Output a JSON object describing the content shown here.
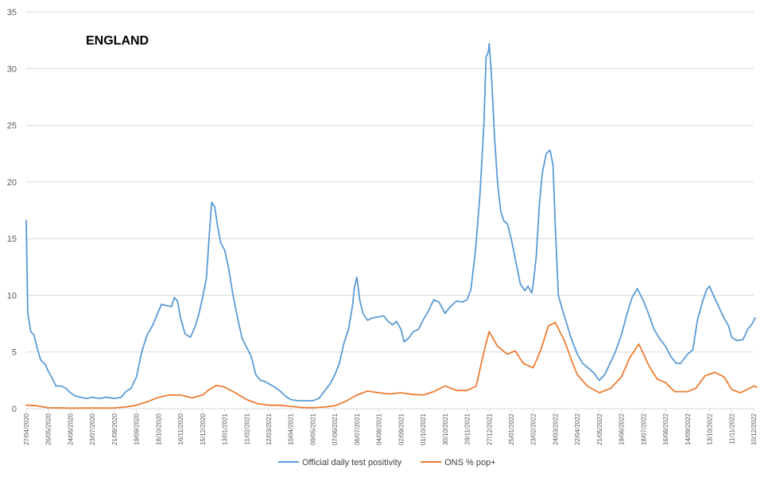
{
  "chart_data": {
    "type": "line",
    "title": "",
    "annotation": "ENGLAND",
    "xlabel": "",
    "ylabel": "",
    "ylim": [
      0,
      35
    ],
    "y_ticks": [
      "0",
      "5",
      "10",
      "15",
      "20",
      "25",
      "30",
      "35"
    ],
    "x_tick_labels": [
      "27/04/2020",
      "26/05/2020",
      "24/06/2020",
      "23/07/2020",
      "21/08/2020",
      "19/09/2020",
      "18/10/2020",
      "16/11/2020",
      "15/12/2020",
      "13/01/2021",
      "11/02/2021",
      "12/03/2021",
      "10/04/2021",
      "09/05/2021",
      "07/06/2021",
      "06/07/2021",
      "04/08/2021",
      "02/09/2021",
      "01/10/2021",
      "30/10/2021",
      "28/11/2021",
      "27/12/2021",
      "25/01/2022",
      "23/02/2022",
      "24/03/2022",
      "22/04/2022",
      "21/05/2022",
      "19/06/2022",
      "18/07/2022",
      "16/08/2022",
      "14/09/2022",
      "13/10/2022",
      "11/11/2022",
      "10/12/2022"
    ],
    "grid": true,
    "legend_position": "bottom",
    "series": [
      {
        "name": "Official daily test positivity",
        "color": "#5b9bd5",
        "points": [
          [
            "27/04/2020",
            16.6
          ],
          [
            "29/04/2020",
            8.5
          ],
          [
            "03/05/2020",
            6.8
          ],
          [
            "07/05/2020",
            6.5
          ],
          [
            "12/05/2020",
            5.2
          ],
          [
            "16/05/2020",
            4.3
          ],
          [
            "22/05/2020",
            3.9
          ],
          [
            "26/05/2020",
            3.3
          ],
          [
            "01/06/2020",
            2.6
          ],
          [
            "05/06/2020",
            2.0
          ],
          [
            "12/06/2020",
            2.0
          ],
          [
            "18/06/2020",
            1.8
          ],
          [
            "24/06/2020",
            1.4
          ],
          [
            "01/07/2020",
            1.1
          ],
          [
            "08/07/2020",
            1.0
          ],
          [
            "15/07/2020",
            0.9
          ],
          [
            "23/07/2020",
            1.0
          ],
          [
            "01/08/2020",
            0.9
          ],
          [
            "10/08/2020",
            1.0
          ],
          [
            "21/08/2020",
            0.9
          ],
          [
            "30/08/2020",
            1.0
          ],
          [
            "05/09/2020",
            1.5
          ],
          [
            "12/09/2020",
            1.8
          ],
          [
            "19/09/2020",
            2.8
          ],
          [
            "26/09/2020",
            5.0
          ],
          [
            "03/10/2020",
            6.5
          ],
          [
            "10/10/2020",
            7.3
          ],
          [
            "18/10/2020",
            8.6
          ],
          [
            "22/10/2020",
            9.2
          ],
          [
            "28/10/2020",
            9.1
          ],
          [
            "04/11/2020",
            9.0
          ],
          [
            "08/11/2020",
            9.8
          ],
          [
            "12/11/2020",
            9.5
          ],
          [
            "16/11/2020",
            8.0
          ],
          [
            "22/11/2020",
            6.6
          ],
          [
            "29/11/2020",
            6.3
          ],
          [
            "05/12/2020",
            7.2
          ],
          [
            "10/12/2020",
            8.3
          ],
          [
            "15/12/2020",
            9.8
          ],
          [
            "20/12/2020",
            11.5
          ],
          [
            "24/12/2020",
            15.5
          ],
          [
            "27/12/2020",
            18.2
          ],
          [
            "31/12/2020",
            17.8
          ],
          [
            "04/01/2021",
            16.0
          ],
          [
            "08/01/2021",
            14.6
          ],
          [
            "13/01/2021",
            14.0
          ],
          [
            "18/01/2021",
            12.5
          ],
          [
            "24/01/2021",
            10.0
          ],
          [
            "30/01/2021",
            8.0
          ],
          [
            "05/02/2021",
            6.2
          ],
          [
            "11/02/2021",
            5.4
          ],
          [
            "17/02/2021",
            4.6
          ],
          [
            "23/02/2021",
            3.0
          ],
          [
            "01/03/2021",
            2.5
          ],
          [
            "07/03/2021",
            2.4
          ],
          [
            "12/03/2021",
            2.2
          ],
          [
            "20/03/2021",
            1.9
          ],
          [
            "28/03/2021",
            1.5
          ],
          [
            "03/04/2021",
            1.1
          ],
          [
            "10/04/2021",
            0.8
          ],
          [
            "20/04/2021",
            0.7
          ],
          [
            "01/05/2021",
            0.7
          ],
          [
            "09/05/2021",
            0.7
          ],
          [
            "17/05/2021",
            0.9
          ],
          [
            "25/05/2021",
            1.6
          ],
          [
            "01/06/2021",
            2.2
          ],
          [
            "07/06/2021",
            3.0
          ],
          [
            "13/06/2021",
            4.0
          ],
          [
            "19/06/2021",
            5.8
          ],
          [
            "25/06/2021",
            7.0
          ],
          [
            "30/06/2021",
            9.0
          ],
          [
            "03/07/2021",
            10.8
          ],
          [
            "06/07/2021",
            11.6
          ],
          [
            "10/07/2021",
            9.5
          ],
          [
            "14/07/2021",
            8.4
          ],
          [
            "20/07/2021",
            7.8
          ],
          [
            "26/07/2021",
            8.0
          ],
          [
            "04/08/2021",
            8.1
          ],
          [
            "10/08/2021",
            8.2
          ],
          [
            "16/08/2021",
            7.7
          ],
          [
            "22/08/2021",
            7.4
          ],
          [
            "27/08/2021",
            7.7
          ],
          [
            "02/09/2021",
            7.0
          ],
          [
            "06/09/2021",
            5.9
          ],
          [
            "12/09/2021",
            6.2
          ],
          [
            "18/09/2021",
            6.8
          ],
          [
            "25/09/2021",
            7.0
          ],
          [
            "01/10/2021",
            7.8
          ],
          [
            "08/10/2021",
            8.6
          ],
          [
            "15/10/2021",
            9.6
          ],
          [
            "22/10/2021",
            9.4
          ],
          [
            "30/10/2021",
            8.4
          ],
          [
            "06/11/2021",
            9.0
          ],
          [
            "14/11/2021",
            9.5
          ],
          [
            "21/11/2021",
            9.4
          ],
          [
            "28/11/2021",
            9.6
          ],
          [
            "03/12/2021",
            10.5
          ],
          [
            "09/12/2021",
            14.0
          ],
          [
            "15/12/2021",
            19.0
          ],
          [
            "20/12/2021",
            25.0
          ],
          [
            "23/12/2021",
            31.0
          ],
          [
            "26/12/2021",
            31.5
          ],
          [
            "27/12/2021",
            32.2
          ],
          [
            "30/12/2021",
            29.5
          ],
          [
            "03/01/2022",
            24.0
          ],
          [
            "07/01/2022",
            20.0
          ],
          [
            "11/01/2022",
            17.5
          ],
          [
            "15/01/2022",
            16.6
          ],
          [
            "20/01/2022",
            16.3
          ],
          [
            "25/01/2022",
            15.0
          ],
          [
            "31/01/2022",
            13.0
          ],
          [
            "06/02/2022",
            11.0
          ],
          [
            "12/02/2022",
            10.4
          ],
          [
            "16/02/2022",
            10.8
          ],
          [
            "21/02/2022",
            10.2
          ],
          [
            "23/02/2022",
            11.0
          ],
          [
            "27/02/2022",
            13.5
          ],
          [
            "03/03/2022",
            18.0
          ],
          [
            "07/03/2022",
            20.8
          ],
          [
            "12/03/2022",
            22.5
          ],
          [
            "17/03/2022",
            22.8
          ],
          [
            "21/03/2022",
            21.5
          ],
          [
            "24/03/2022",
            16.0
          ],
          [
            "28/03/2022",
            10.0
          ],
          [
            "02/04/2022",
            8.8
          ],
          [
            "08/04/2022",
            7.5
          ],
          [
            "14/04/2022",
            6.2
          ],
          [
            "22/04/2022",
            4.8
          ],
          [
            "29/04/2022",
            4.0
          ],
          [
            "06/05/2022",
            3.6
          ],
          [
            "13/05/2022",
            3.2
          ],
          [
            "21/05/2022",
            2.5
          ],
          [
            "28/05/2022",
            3.0
          ],
          [
            "04/06/2022",
            4.0
          ],
          [
            "11/06/2022",
            5.0
          ],
          [
            "19/06/2022",
            6.5
          ],
          [
            "26/06/2022",
            8.3
          ],
          [
            "03/07/2022",
            9.8
          ],
          [
            "10/07/2022",
            10.6
          ],
          [
            "18/07/2022",
            9.5
          ],
          [
            "25/07/2022",
            8.3
          ],
          [
            "01/08/2022",
            7.0
          ],
          [
            "08/08/2022",
            6.2
          ],
          [
            "16/08/2022",
            5.5
          ],
          [
            "23/08/2022",
            4.6
          ],
          [
            "30/08/2022",
            4.0
          ],
          [
            "05/09/2022",
            4.0
          ],
          [
            "14/09/2022",
            4.8
          ],
          [
            "21/09/2022",
            5.2
          ],
          [
            "27/09/2022",
            7.8
          ],
          [
            "04/10/2022",
            9.5
          ],
          [
            "09/10/2022",
            10.5
          ],
          [
            "13/10/2022",
            10.8
          ],
          [
            "18/10/2022",
            10.0
          ],
          [
            "25/10/2022",
            9.0
          ],
          [
            "01/11/2022",
            8.0
          ],
          [
            "07/11/2022",
            7.3
          ],
          [
            "11/11/2022",
            6.3
          ],
          [
            "18/11/2022",
            6.0
          ],
          [
            "26/11/2022",
            6.1
          ],
          [
            "02/12/2022",
            7.0
          ],
          [
            "08/12/2022",
            7.5
          ],
          [
            "12/12/2022",
            8.0
          ]
        ]
      },
      {
        "name": "ONS % pop+",
        "color": "#ed7d31",
        "points": [
          [
            "27/04/2020",
            0.3
          ],
          [
            "10/05/2020",
            0.27
          ],
          [
            "26/05/2020",
            0.08
          ],
          [
            "10/06/2020",
            0.07
          ],
          [
            "24/06/2020",
            0.04
          ],
          [
            "10/07/2020",
            0.05
          ],
          [
            "23/07/2020",
            0.06
          ],
          [
            "10/08/2020",
            0.05
          ],
          [
            "21/08/2020",
            0.06
          ],
          [
            "05/09/2020",
            0.15
          ],
          [
            "19/09/2020",
            0.3
          ],
          [
            "03/10/2020",
            0.6
          ],
          [
            "18/10/2020",
            1.0
          ],
          [
            "01/11/2020",
            1.2
          ],
          [
            "16/11/2020",
            1.2
          ],
          [
            "01/12/2020",
            0.95
          ],
          [
            "15/12/2020",
            1.2
          ],
          [
            "24/12/2020",
            1.7
          ],
          [
            "02/01/2021",
            2.05
          ],
          [
            "13/01/2021",
            1.9
          ],
          [
            "27/01/2021",
            1.4
          ],
          [
            "11/02/2021",
            0.8
          ],
          [
            "25/02/2021",
            0.45
          ],
          [
            "12/03/2021",
            0.3
          ],
          [
            "27/03/2021",
            0.3
          ],
          [
            "10/04/2021",
            0.2
          ],
          [
            "25/04/2021",
            0.1
          ],
          [
            "09/05/2021",
            0.08
          ],
          [
            "25/05/2021",
            0.15
          ],
          [
            "07/06/2021",
            0.25
          ],
          [
            "20/06/2021",
            0.6
          ],
          [
            "06/07/2021",
            1.2
          ],
          [
            "20/07/2021",
            1.55
          ],
          [
            "04/08/2021",
            1.4
          ],
          [
            "18/08/2021",
            1.3
          ],
          [
            "02/09/2021",
            1.4
          ],
          [
            "18/09/2021",
            1.25
          ],
          [
            "01/10/2021",
            1.2
          ],
          [
            "15/10/2021",
            1.5
          ],
          [
            "30/10/2021",
            2.0
          ],
          [
            "14/11/2021",
            1.6
          ],
          [
            "28/11/2021",
            1.6
          ],
          [
            "10/12/2021",
            2.0
          ],
          [
            "20/12/2021",
            5.0
          ],
          [
            "27/12/2021",
            6.8
          ],
          [
            "07/01/2022",
            5.5
          ],
          [
            "20/01/2022",
            4.8
          ],
          [
            "30/01/2022",
            5.1
          ],
          [
            "10/02/2022",
            4.0
          ],
          [
            "23/02/2022",
            3.6
          ],
          [
            "05/03/2022",
            5.2
          ],
          [
            "15/03/2022",
            7.3
          ],
          [
            "24/03/2022",
            7.6
          ],
          [
            "05/04/2022",
            6.0
          ],
          [
            "16/04/2022",
            4.0
          ],
          [
            "22/04/2022",
            3.0
          ],
          [
            "05/05/2022",
            2.0
          ],
          [
            "21/05/2022",
            1.4
          ],
          [
            "05/06/2022",
            1.8
          ],
          [
            "19/06/2022",
            2.8
          ],
          [
            "30/06/2022",
            4.5
          ],
          [
            "12/07/2022",
            5.7
          ],
          [
            "25/07/2022",
            3.8
          ],
          [
            "05/08/2022",
            2.6
          ],
          [
            "16/08/2022",
            2.3
          ],
          [
            "28/08/2022",
            1.5
          ],
          [
            "14/09/2022",
            1.5
          ],
          [
            "25/09/2022",
            1.8
          ],
          [
            "07/10/2022",
            2.9
          ],
          [
            "20/10/2022",
            3.2
          ],
          [
            "01/11/2022",
            2.8
          ],
          [
            "11/11/2022",
            1.7
          ],
          [
            "22/11/2022",
            1.4
          ],
          [
            "02/12/2022",
            1.7
          ],
          [
            "10/12/2022",
            2.0
          ],
          [
            "14/12/2022",
            1.9
          ]
        ]
      }
    ]
  }
}
